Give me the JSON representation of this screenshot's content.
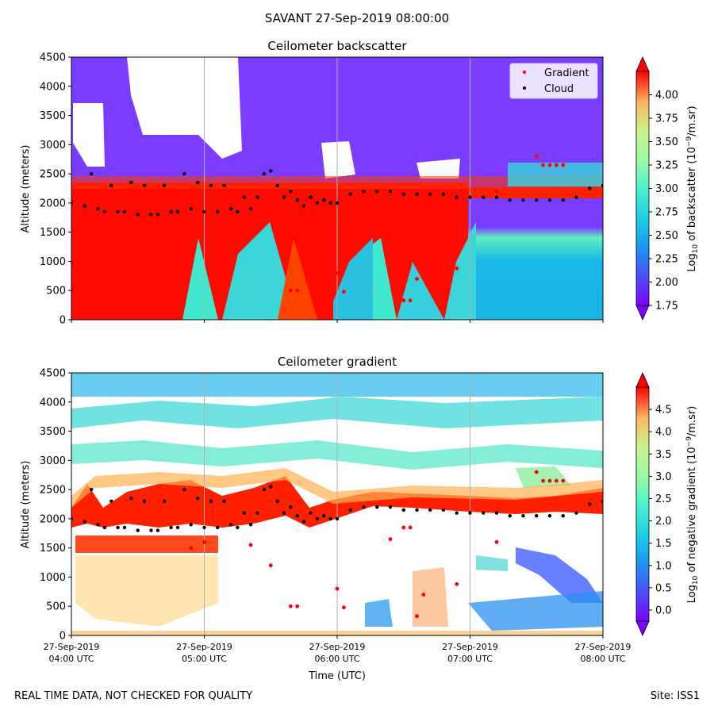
{
  "page": {
    "title": "SAVANT 27-Sep-2019 08:00:00",
    "footer_note": "REAL TIME DATA, NOT CHECKED FOR QUALITY",
    "footer_site": "Site: ISS1"
  },
  "chart_data": [
    {
      "type": "heatmap",
      "title": "Ceilometer backscatter",
      "xlabel": "",
      "ylabel": "Altitude (meters)",
      "ylim": [
        0,
        4500
      ],
      "yticks": [
        0,
        500,
        1000,
        1500,
        2000,
        2500,
        3000,
        3500,
        4000,
        4500
      ],
      "xlim_hours": [
        4,
        8
      ],
      "colorbar": {
        "label_prefix": "Log",
        "label_sub": "10",
        "label_mid": " of backscatter (10",
        "label_sup": "−9",
        "label_suffix": "/m.sr)",
        "range": [
          1.75,
          4.25
        ],
        "ticks": [
          "1.75",
          "2.00",
          "2.25",
          "2.50",
          "2.75",
          "3.00",
          "3.25",
          "3.50",
          "3.75",
          "4.00"
        ],
        "colormap": "rainbow",
        "extend": "both"
      },
      "legend": {
        "position": "top-right",
        "entries": [
          {
            "name": "Gradient",
            "color": "#ff0000"
          },
          {
            "name": "Cloud",
            "color": "#000000"
          }
        ]
      },
      "series": [
        {
          "name": "Cloud",
          "color": "#000000",
          "x_hours": [
            4.0,
            4.1,
            4.15,
            4.2,
            4.25,
            4.3,
            4.35,
            4.4,
            4.45,
            4.5,
            4.55,
            4.6,
            4.65,
            4.7,
            4.75,
            4.8,
            4.85,
            4.9,
            4.95,
            5.0,
            5.05,
            5.1,
            5.15,
            5.2,
            5.25,
            5.3,
            5.35,
            5.4,
            5.45,
            5.5,
            5.55,
            5.6,
            5.65,
            5.7,
            5.75,
            5.8,
            5.85,
            5.9,
            5.95,
            6.0,
            6.1,
            6.2,
            6.3,
            6.4,
            6.5,
            6.6,
            6.7,
            6.8,
            6.9,
            7.0,
            7.1,
            7.2,
            7.3,
            7.4,
            7.5,
            7.6,
            7.7,
            7.8,
            7.9,
            8.0
          ],
          "y_m": [
            2000,
            1950,
            2500,
            1900,
            1850,
            2300,
            1850,
            1850,
            2350,
            1800,
            2300,
            1800,
            1800,
            2300,
            1850,
            1850,
            2500,
            1900,
            2350,
            1850,
            2300,
            1850,
            2300,
            1900,
            1850,
            2100,
            1900,
            2100,
            2500,
            2550,
            2300,
            2100,
            2200,
            2050,
            1950,
            2100,
            2000,
            2050,
            2000,
            2000,
            2150,
            2200,
            2200,
            2200,
            2150,
            2150,
            2150,
            2150,
            2100,
            2100,
            2100,
            2100,
            2050,
            2050,
            2050,
            2050,
            2050,
            2100,
            2250,
            2300
          ]
        },
        {
          "name": "Gradient",
          "color": "#ff0000",
          "x_hours": [
            5.65,
            5.7,
            6.0,
            6.05,
            6.5,
            6.55,
            6.6,
            6.9,
            7.2,
            7.5,
            7.55,
            7.6,
            7.65,
            7.7
          ],
          "y_m": [
            500,
            500,
            800,
            480,
            330,
            330,
            700,
            880,
            2200,
            2800,
            2650,
            2650,
            2650,
            2650
          ]
        }
      ]
    },
    {
      "type": "heatmap",
      "title": "Ceilometer gradient",
      "xlabel": "Time (UTC)",
      "ylabel": "Altitude (meters)",
      "ylim": [
        0,
        4500
      ],
      "yticks": [
        0,
        500,
        1000,
        1500,
        2000,
        2500,
        3000,
        3500,
        4000,
        4500
      ],
      "xlim_hours": [
        4,
        8
      ],
      "xticks": [
        {
          "hour": 4,
          "line1": "27-Sep-2019",
          "line2": "04:00 UTC"
        },
        {
          "hour": 5,
          "line1": "27-Sep-2019",
          "line2": "05:00 UTC"
        },
        {
          "hour": 6,
          "line1": "27-Sep-2019",
          "line2": "06:00 UTC"
        },
        {
          "hour": 7,
          "line1": "27-Sep-2019",
          "line2": "07:00 UTC"
        },
        {
          "hour": 8,
          "line1": "27-Sep-2019",
          "line2": "08:00 UTC"
        }
      ],
      "colorbar": {
        "label_prefix": "Log",
        "label_sub": "10",
        "label_mid": " of negative gradient (10",
        "label_sup": "−9",
        "label_suffix": "/m.sr)",
        "range": [
          -0.25,
          5.0
        ],
        "ticks": [
          "0.0",
          "0.5",
          "1.0",
          "1.5",
          "2.0",
          "2.5",
          "3.0",
          "3.5",
          "4.0",
          "4.5"
        ],
        "colormap": "rainbow",
        "extend": "both"
      },
      "series": [
        {
          "name": "Cloud",
          "color": "#000000",
          "x_hours": [
            4.0,
            4.1,
            4.15,
            4.2,
            4.25,
            4.3,
            4.35,
            4.4,
            4.45,
            4.5,
            4.55,
            4.6,
            4.65,
            4.7,
            4.75,
            4.8,
            4.85,
            4.9,
            4.95,
            5.0,
            5.05,
            5.1,
            5.15,
            5.2,
            5.25,
            5.3,
            5.35,
            5.4,
            5.45,
            5.5,
            5.55,
            5.6,
            5.65,
            5.7,
            5.75,
            5.8,
            5.85,
            5.9,
            5.95,
            6.0,
            6.1,
            6.2,
            6.3,
            6.4,
            6.5,
            6.6,
            6.7,
            6.8,
            6.9,
            7.0,
            7.1,
            7.2,
            7.3,
            7.4,
            7.5,
            7.6,
            7.7,
            7.8,
            7.9,
            8.0
          ],
          "y_m": [
            2000,
            1950,
            2500,
            1900,
            1850,
            2300,
            1850,
            1850,
            2350,
            1800,
            2300,
            1800,
            1800,
            2300,
            1850,
            1850,
            2500,
            1900,
            2350,
            1850,
            2300,
            1850,
            2300,
            1900,
            1850,
            2100,
            1900,
            2100,
            2500,
            2550,
            2300,
            2100,
            2200,
            2050,
            1950,
            2100,
            2000,
            2050,
            2000,
            2000,
            2150,
            2200,
            2200,
            2200,
            2150,
            2150,
            2150,
            2150,
            2100,
            2100,
            2100,
            2100,
            2050,
            2050,
            2050,
            2050,
            2050,
            2100,
            2250,
            2300
          ]
        },
        {
          "name": "Gradient",
          "color": "#ff0000",
          "x_hours": [
            4.9,
            5.0,
            5.35,
            5.5,
            5.65,
            5.7,
            6.0,
            6.05,
            6.4,
            6.5,
            6.55,
            6.6,
            6.65,
            6.9,
            7.2,
            7.5,
            7.55,
            7.6,
            7.65,
            7.7
          ],
          "y_m": [
            1500,
            1600,
            1550,
            1200,
            500,
            500,
            800,
            480,
            1650,
            1850,
            1850,
            330,
            700,
            880,
            1600,
            2800,
            2650,
            2650,
            2650,
            2650
          ]
        }
      ]
    }
  ]
}
